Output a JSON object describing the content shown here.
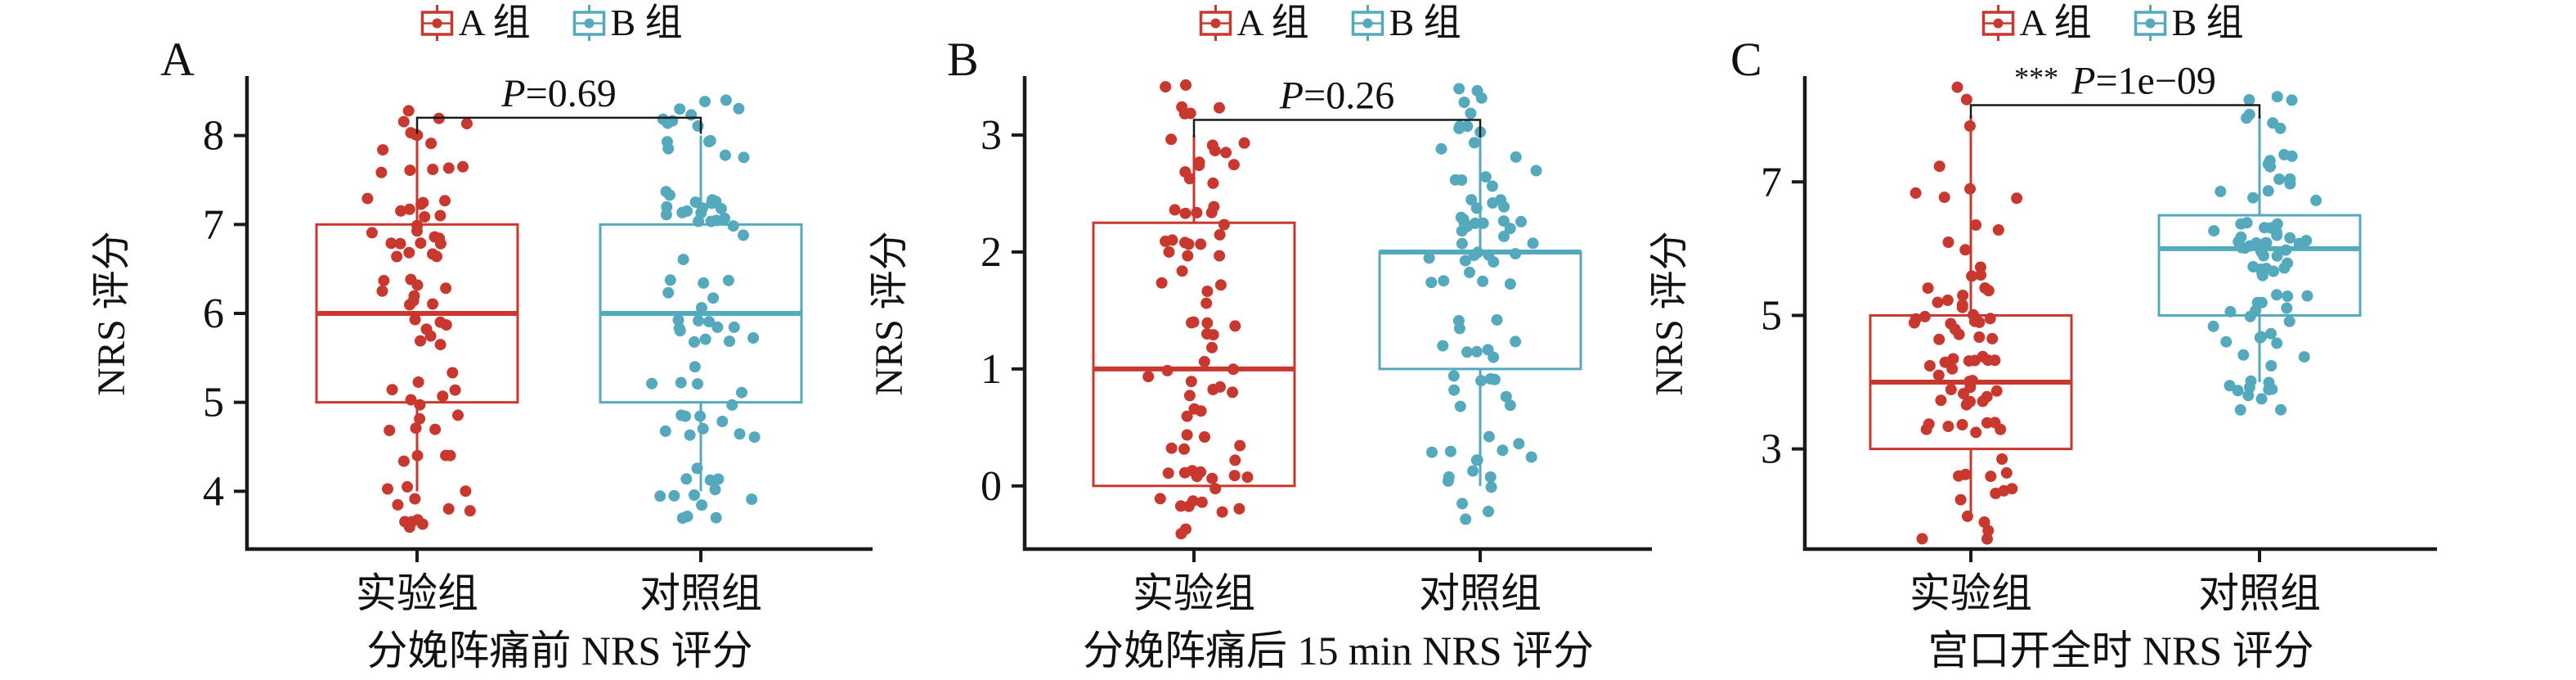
{
  "figure": {
    "background": "#ffffff"
  },
  "colors": {
    "group_a_red": "#C8382E",
    "group_b_teal": "#54A9BD",
    "axis_black": "#1a1a1a",
    "text_black": "#111111"
  },
  "legend": {
    "position": "top-center-of-each-panel",
    "items": [
      {
        "label": "A 组",
        "color": "#C8382E",
        "key_icon": "boxplot-key-icon"
      },
      {
        "label": "B 组",
        "color": "#54A9BD",
        "key_icon": "boxplot-key-icon"
      }
    ]
  },
  "x_axis": {
    "group_labels": [
      "实验组",
      "对照组"
    ]
  },
  "y_axis_label": "NRS 评分",
  "chart_data": [
    {
      "type": "boxplot-jitter",
      "panel_label": "A",
      "title": "分娩阵痛前 NRS 评分",
      "ylabel": "NRS 评分",
      "yticks": [
        4,
        5,
        6,
        7,
        8
      ],
      "ylim": [
        3.35,
        8.65
      ],
      "grid": false,
      "significance": {
        "stars": "",
        "p_text": "P=0.69",
        "bracket_value": 8.2,
        "bracket_tip": 8.02
      },
      "groups": [
        {
          "name": "实验组",
          "legend": "A 组",
          "color": "#C8382E",
          "jitter_y": 0.42,
          "box": {
            "whisker_low": 4,
            "q1": 5,
            "median": 6,
            "q3": 7,
            "whisker_high": 8
          },
          "points": [
            [
              4,
              16
            ],
            [
              5,
              12
            ],
            [
              6,
              16
            ],
            [
              7,
              21
            ],
            [
              8,
              14
            ]
          ]
        },
        {
          "name": "对照组",
          "legend": "B 组",
          "color": "#54A9BD",
          "jitter_y": 0.42,
          "box": {
            "whisker_low": 4,
            "q1": 5,
            "median": 6,
            "q3": 7,
            "whisker_high": 8
          },
          "points": [
            [
              4,
              13
            ],
            [
              5,
              15
            ],
            [
              6,
              17
            ],
            [
              7,
              20
            ],
            [
              8,
              15
            ]
          ]
        }
      ]
    },
    {
      "type": "boxplot-jitter",
      "panel_label": "B",
      "title": "分娩阵痛后 15 min NRS 评分",
      "ylabel": "NRS 评分",
      "yticks": [
        0,
        1,
        2,
        3
      ],
      "ylim": [
        -0.54,
        3.49
      ],
      "grid": false,
      "significance": {
        "stars": "",
        "p_text": "P=0.26",
        "bracket_value": 3.13,
        "bracket_tip": 2.98
      },
      "groups": [
        {
          "name": "实验组",
          "legend": "A 组",
          "color": "#C8382E",
          "jitter_y": 0.45,
          "box": {
            "whisker_low": 0,
            "q1": 0,
            "median": 1,
            "q3": 2.25,
            "whisker_high": 3
          },
          "points": [
            [
              0,
              24
            ],
            [
              1,
              19
            ],
            [
              2,
              20
            ],
            [
              3,
              17
            ]
          ]
        },
        {
          "name": "对照组",
          "legend": "B 组",
          "color": "#54A9BD",
          "jitter_y": 0.45,
          "box": {
            "whisker_low": 0,
            "q1": 1,
            "median": 2,
            "q3": 2,
            "whisker_high": 3
          },
          "points": [
            [
              0,
              16
            ],
            [
              1,
              17
            ],
            [
              2,
              30
            ],
            [
              3,
              17
            ]
          ]
        }
      ]
    },
    {
      "type": "boxplot-jitter",
      "panel_label": "C",
      "title": "宫口开全时 NRS 评分",
      "ylabel": "NRS 评分",
      "yticks": [
        3,
        5,
        7
      ],
      "ylim": [
        1.5,
        8.56
      ],
      "grid": false,
      "significance": {
        "stars": "***",
        "p_text": "P=1e−09",
        "bracket_value": 8.15,
        "bracket_tip": 7.95
      },
      "groups": [
        {
          "name": "实验组",
          "legend": "A 组",
          "color": "#C8382E",
          "jitter_y": 0.42,
          "box": {
            "whisker_low": 2,
            "q1": 3,
            "median": 4,
            "q3": 5,
            "whisker_high": 8
          },
          "points": [
            [
              2,
              9
            ],
            [
              3,
              13
            ],
            [
              4,
              22
            ],
            [
              5,
              21
            ],
            [
              6,
              7
            ],
            [
              7,
              5
            ],
            [
              8,
              3
            ]
          ]
        },
        {
          "name": "对照组",
          "legend": "B 组",
          "color": "#54A9BD",
          "jitter_y": 0.42,
          "box": {
            "whisker_low": 4,
            "q1": 5,
            "median": 6,
            "q3": 6.5,
            "whisker_high": 8
          },
          "points": [
            [
              4,
              14
            ],
            [
              5,
              16
            ],
            [
              6,
              31
            ],
            [
              7,
              12
            ],
            [
              8,
              7
            ]
          ]
        }
      ]
    }
  ]
}
